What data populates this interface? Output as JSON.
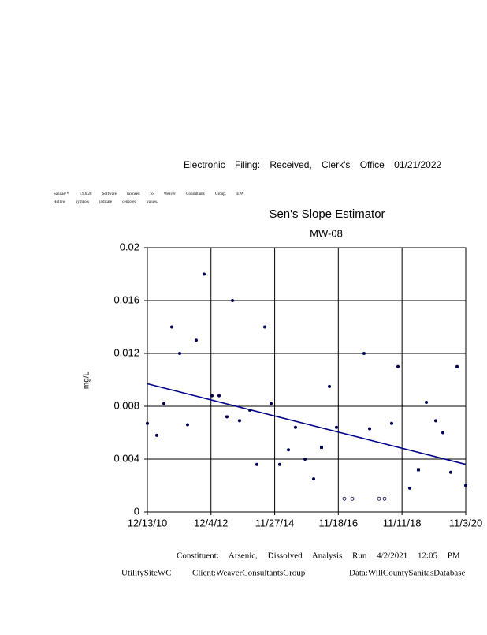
{
  "header": "Electronic Filing: Received, Clerk's Office 01/21/2022",
  "notes": [
    "Sanitas™ v.9.6.28 Software licensed to Weaver Consultants Group. EPA",
    "Hollow symbols indicate censored values."
  ],
  "chart_data": {
    "type": "scatter",
    "title": "Sen's Slope Estimator",
    "subtitle": "MW-08",
    "y_label": "mg/L",
    "x": [
      "12/13/10",
      "3/30/11",
      "6/19/11",
      "9/16/11",
      "12/15/11",
      "3/13/12",
      "6/19/12",
      "9/17/12",
      "12/15/12",
      "3/6/13",
      "6/3/13",
      "8/5/13",
      "10/24/13",
      "2/18/14",
      "5/9/14",
      "8/7/14",
      "10/17/14",
      "1/23/15",
      "5/2/15",
      "7/21/15",
      "11/6/15",
      "2/12/16",
      "5/11/16",
      "8/9/16",
      "10/28/16",
      "1/26/17",
      "4/25/17",
      "9/6/17",
      "11/8/17",
      "2/23/18",
      "4/27/18",
      "7/16/18",
      "9/26/18",
      "2/7/19",
      "5/16/19",
      "8/14/19",
      "11/29/19",
      "2/18/20",
      "5/17/20",
      "7/28/20",
      "11/3/20"
    ],
    "values": [
      0.0067,
      0.0058,
      0.0082,
      0.014,
      0.012,
      0.0066,
      0.013,
      0.018,
      0.0088,
      0.0088,
      0.0072,
      0.016,
      0.0069,
      0.0077,
      0.0036,
      0.014,
      0.0082,
      0.0036,
      0.0047,
      0.0064,
      0.004,
      0.0025,
      0.0049,
      0.0095,
      0.0064,
      0.001,
      0.001,
      0.012,
      0.0063,
      0.001,
      0.001,
      0.0067,
      0.011,
      0.0018,
      0.0032,
      0.0083,
      0.0069,
      0.006,
      0.003,
      0.011,
      0.002
    ],
    "markers": [
      "circle",
      "circle",
      "circle",
      "circle",
      "circle",
      "circle",
      "circle",
      "circle",
      "circle",
      "circle",
      "circle",
      "circle",
      "circle",
      "circle",
      "circle",
      "circle",
      "circle",
      "circle",
      "circle",
      "circle",
      "circle",
      "circle",
      "square",
      "circle",
      "circle",
      "hollow",
      "hollow",
      "circle",
      "circle",
      "hollow",
      "hollow",
      "circle",
      "circle",
      "circle",
      "square",
      "circle",
      "circle",
      "circle",
      "circle",
      "circle",
      "circle"
    ],
    "color": "#000050",
    "trend_line": {
      "x": [
        "12/13/10",
        "11/3/20"
      ],
      "values": [
        0.0097,
        0.0036
      ],
      "color": "#00008b"
    },
    "xlim": [
      "12/13/10",
      "11/3/20"
    ],
    "xticks": [
      "12/13/10",
      "12/4/12",
      "11/27/14",
      "11/18/16",
      "11/11/18",
      "11/3/20"
    ],
    "ylim": [
      0,
      0.02
    ],
    "yticks": [
      0,
      0.004,
      0.008,
      0.012,
      0.016,
      0.02
    ],
    "grid": true
  },
  "footer": {
    "line1": "Constituent: Arsenic, Dissolved Analysis Run 4/2/2021 12:05 PM",
    "site": "UtilitySiteWC",
    "client": "Client:WeaverConsultantsGroup",
    "database": "Data:WillCountySanitasDatabase"
  }
}
